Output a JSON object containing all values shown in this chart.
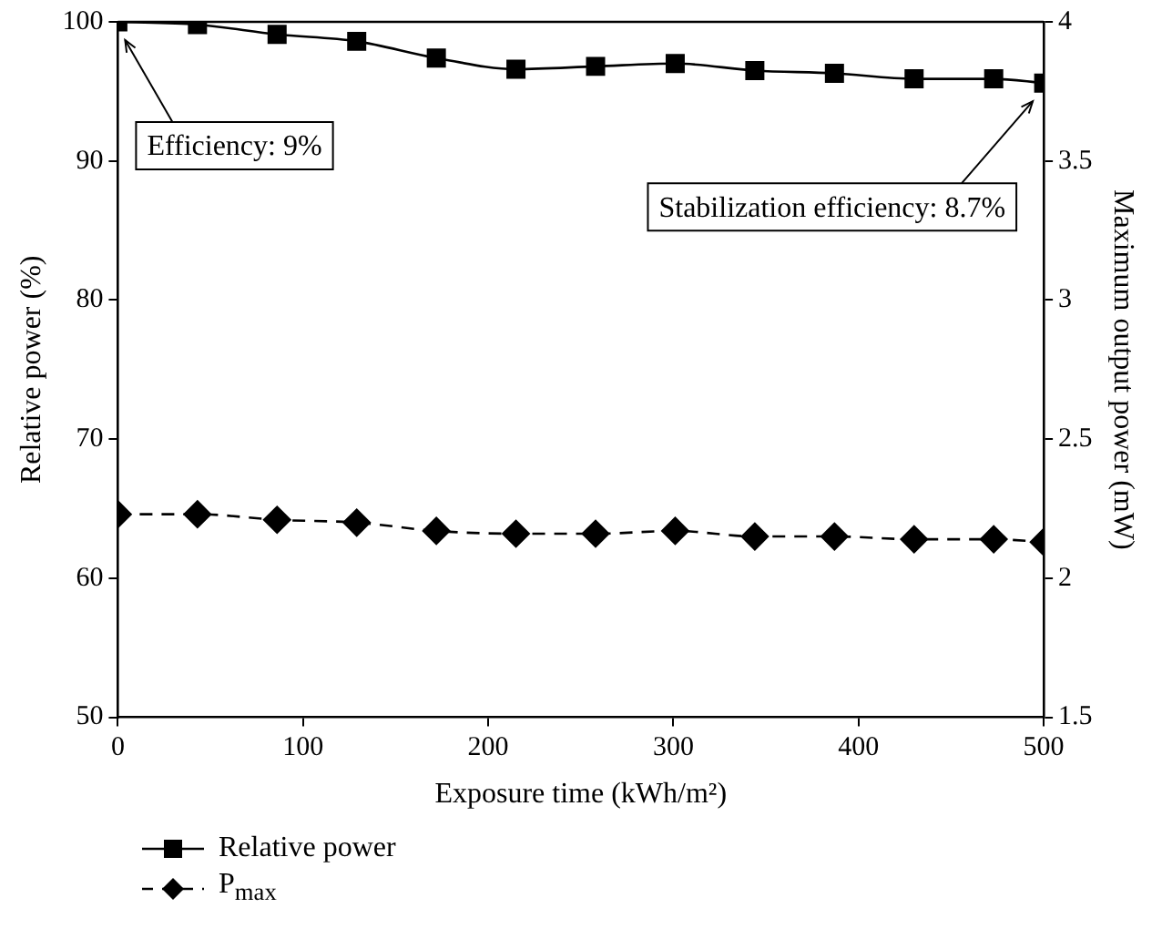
{
  "chart_data": {
    "type": "line",
    "xlabel": "Exposure time (kWh/m²)",
    "ylabel": "Relative power (%)",
    "y2label": "Maximum output power (mW)",
    "x": [
      0,
      43,
      86,
      129,
      172,
      215,
      258,
      301,
      344,
      387,
      430,
      473,
      500
    ],
    "series": [
      {
        "name": "Relative power",
        "color": "#000000",
        "marker": "square",
        "line_style": "solid",
        "values": [
          100,
          99.8,
          99.1,
          98.6,
          97.4,
          96.6,
          96.8,
          97.0,
          96.5,
          96.3,
          95.9,
          95.9,
          95.6
        ]
      },
      {
        "name": "P$_{max}$",
        "color": "#000000",
        "marker": "diamond",
        "line_style": "dashed",
        "axis": "y2",
        "values": [
          2.23,
          2.23,
          2.21,
          2.2,
          2.17,
          2.16,
          2.16,
          2.17,
          2.15,
          2.15,
          2.14,
          2.14,
          2.13
        ]
      }
    ],
    "xlim": [
      0,
      500
    ],
    "xticks": [
      0,
      100,
      200,
      300,
      400,
      500
    ],
    "ylim": [
      50,
      100
    ],
    "yticks": [
      50,
      60,
      70,
      80,
      90,
      100
    ],
    "y2lim": [
      1.5,
      4
    ],
    "y2ticks": [
      1.5,
      2,
      2.5,
      3,
      3.5,
      4
    ],
    "annotations": [
      "Efficiency: 9%",
      "Stabilization efficiency: 8.7%"
    ],
    "grid": false,
    "legend": "bottom left"
  }
}
